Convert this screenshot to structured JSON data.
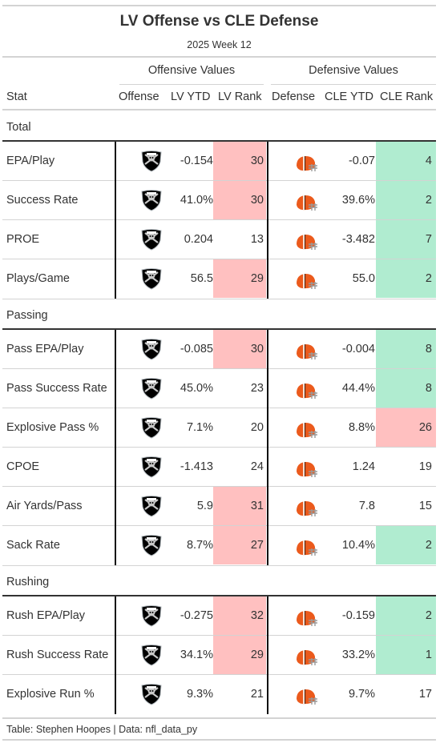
{
  "title": "LV Offense vs CLE Defense",
  "subtitle": "2025 Week 12",
  "spanners": {
    "offense": "Offensive Values",
    "defense": "Defensive Values"
  },
  "columns": {
    "stat": "Stat",
    "offense": "Offense",
    "lv_ytd": "LV YTD",
    "lv_rank": "LV Rank",
    "defense": "Defense",
    "cle_ytd": "CLE YTD",
    "cle_rank": "CLE Rank"
  },
  "colors": {
    "bad_rank": "#ffc0c0",
    "good_rank": "#b0ecd0",
    "raiders_black": "#000000",
    "browns_orange": "#eb5a1c",
    "browns_brown": "#3d2314"
  },
  "logos": {
    "offense": "raiders-shield-logo",
    "defense": "browns-helmet-logo"
  },
  "groups": [
    {
      "label": "Total",
      "rows": [
        {
          "stat": "EPA/Play",
          "lv_ytd": "-0.154",
          "lv_rank": "30",
          "lv_rank_tone": "bad",
          "cle_ytd": "-0.07",
          "cle_rank": "4",
          "cle_rank_tone": "good"
        },
        {
          "stat": "Success Rate",
          "lv_ytd": "41.0%",
          "lv_rank": "30",
          "lv_rank_tone": "bad",
          "cle_ytd": "39.6%",
          "cle_rank": "2",
          "cle_rank_tone": "good"
        },
        {
          "stat": "PROE",
          "lv_ytd": "0.204",
          "lv_rank": "13",
          "lv_rank_tone": "",
          "cle_ytd": "-3.482",
          "cle_rank": "7",
          "cle_rank_tone": "good"
        },
        {
          "stat": "Plays/Game",
          "lv_ytd": "56.5",
          "lv_rank": "29",
          "lv_rank_tone": "bad",
          "cle_ytd": "55.0",
          "cle_rank": "2",
          "cle_rank_tone": "good"
        }
      ]
    },
    {
      "label": "Passing",
      "rows": [
        {
          "stat": "Pass EPA/Play",
          "lv_ytd": "-0.085",
          "lv_rank": "30",
          "lv_rank_tone": "bad",
          "cle_ytd": "-0.004",
          "cle_rank": "8",
          "cle_rank_tone": "good"
        },
        {
          "stat": "Pass Success Rate",
          "lv_ytd": "45.0%",
          "lv_rank": "23",
          "lv_rank_tone": "",
          "cle_ytd": "44.4%",
          "cle_rank": "8",
          "cle_rank_tone": "good"
        },
        {
          "stat": "Explosive Pass %",
          "lv_ytd": "7.1%",
          "lv_rank": "20",
          "lv_rank_tone": "",
          "cle_ytd": "8.8%",
          "cle_rank": "26",
          "cle_rank_tone": "bad"
        },
        {
          "stat": "CPOE",
          "lv_ytd": "-1.413",
          "lv_rank": "24",
          "lv_rank_tone": "",
          "cle_ytd": "1.24",
          "cle_rank": "19",
          "cle_rank_tone": ""
        },
        {
          "stat": "Air Yards/Pass",
          "lv_ytd": "5.9",
          "lv_rank": "31",
          "lv_rank_tone": "bad",
          "cle_ytd": "7.8",
          "cle_rank": "15",
          "cle_rank_tone": ""
        },
        {
          "stat": "Sack Rate",
          "lv_ytd": "8.7%",
          "lv_rank": "27",
          "lv_rank_tone": "bad",
          "cle_ytd": "10.4%",
          "cle_rank": "2",
          "cle_rank_tone": "good"
        }
      ]
    },
    {
      "label": "Rushing",
      "rows": [
        {
          "stat": "Rush EPA/Play",
          "lv_ytd": "-0.275",
          "lv_rank": "32",
          "lv_rank_tone": "bad",
          "cle_ytd": "-0.159",
          "cle_rank": "2",
          "cle_rank_tone": "good"
        },
        {
          "stat": "Rush Success Rate",
          "lv_ytd": "34.1%",
          "lv_rank": "29",
          "lv_rank_tone": "bad",
          "cle_ytd": "33.2%",
          "cle_rank": "1",
          "cle_rank_tone": "good"
        },
        {
          "stat": "Explosive Run %",
          "lv_ytd": "9.3%",
          "lv_rank": "21",
          "lv_rank_tone": "",
          "cle_ytd": "9.7%",
          "cle_rank": "17",
          "cle_rank_tone": ""
        }
      ]
    }
  ],
  "source_note": "Table: Stephen Hoopes | Data: nfl_data_py"
}
